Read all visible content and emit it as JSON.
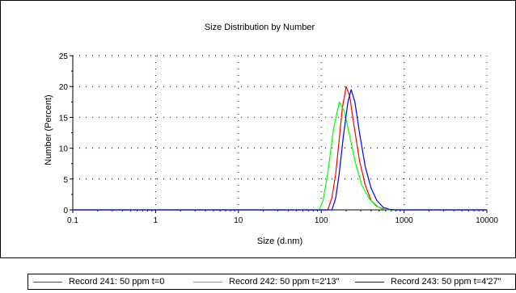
{
  "chart_data": {
    "type": "line",
    "title": "Size Distribution by Number",
    "xlabel": "Size (d.nm)",
    "ylabel": "Number (Percent)",
    "x_scale": "log",
    "xlim": [
      0.1,
      10000
    ],
    "ylim": [
      0,
      25
    ],
    "x_ticks": [
      {
        "value": 0.1,
        "label": "0.1"
      },
      {
        "value": 1,
        "label": "1"
      },
      {
        "value": 10,
        "label": "10"
      },
      {
        "value": 100,
        "label": "100"
      },
      {
        "value": 1000,
        "label": "1000"
      },
      {
        "value": 10000,
        "label": "10000"
      }
    ],
    "y_ticks": [
      {
        "value": 0,
        "label": "0"
      },
      {
        "value": 5,
        "label": "5"
      },
      {
        "value": 10,
        "label": "10"
      },
      {
        "value": 15,
        "label": "15"
      },
      {
        "value": 20,
        "label": "20"
      },
      {
        "value": 25,
        "label": "25"
      }
    ],
    "grid": true,
    "legend_position": "bottom",
    "series": [
      {
        "name": "Record 241: 50 ppm t=0",
        "color": "#ff0000",
        "points": [
          [
            0.1,
            0
          ],
          [
            120,
            0
          ],
          [
            135,
            2
          ],
          [
            150,
            6
          ],
          [
            165,
            11.5
          ],
          [
            180,
            16.5
          ],
          [
            200,
            20
          ],
          [
            220,
            18.5
          ],
          [
            250,
            13.5
          ],
          [
            290,
            8
          ],
          [
            340,
            4
          ],
          [
            400,
            1.5
          ],
          [
            480,
            0.5
          ],
          [
            580,
            0.1
          ],
          [
            700,
            0
          ],
          [
            10000,
            0
          ]
        ]
      },
      {
        "name": "Record 242: 50 ppm t=2'13\"",
        "color": "#00ff00",
        "points": [
          [
            0.1,
            0
          ],
          [
            95,
            0
          ],
          [
            105,
            1.5
          ],
          [
            120,
            6
          ],
          [
            140,
            13
          ],
          [
            165,
            17.5
          ],
          [
            190,
            16
          ],
          [
            220,
            12
          ],
          [
            260,
            7.5
          ],
          [
            310,
            4
          ],
          [
            380,
            1.8
          ],
          [
            460,
            0.6
          ],
          [
            560,
            0.1
          ],
          [
            680,
            0
          ],
          [
            10000,
            0
          ]
        ]
      },
      {
        "name": "Record 243: 50 ppm t=4'27\"",
        "color": "#0000ff",
        "points": [
          [
            0.1,
            0
          ],
          [
            135,
            0
          ],
          [
            150,
            2
          ],
          [
            165,
            6
          ],
          [
            185,
            12
          ],
          [
            210,
            17.5
          ],
          [
            230,
            19.5
          ],
          [
            255,
            17.5
          ],
          [
            290,
            12.5
          ],
          [
            340,
            7
          ],
          [
            400,
            3.5
          ],
          [
            470,
            1.5
          ],
          [
            560,
            0.4
          ],
          [
            680,
            0.05
          ],
          [
            800,
            0
          ],
          [
            10000,
            0
          ]
        ]
      }
    ]
  }
}
